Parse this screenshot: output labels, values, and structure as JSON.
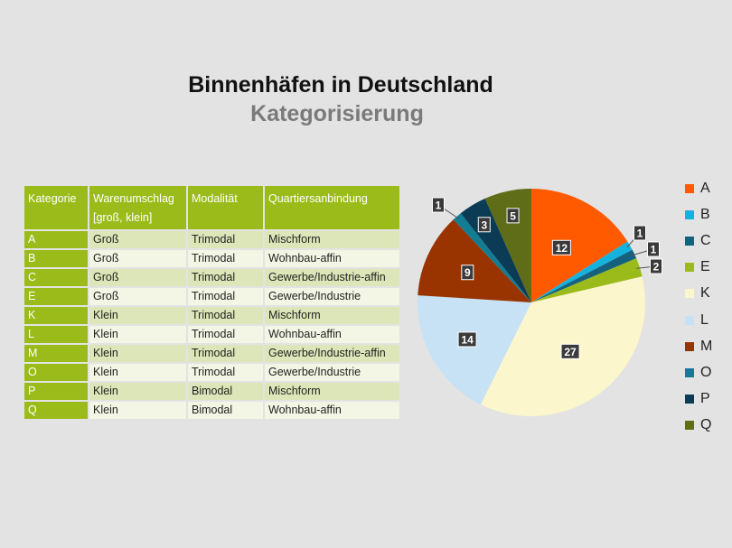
{
  "title": "Binnenhäfen in Deutschland",
  "subtitle": "Kategorisierung",
  "table": {
    "headers": [
      "Kategorie",
      "Warenumschlag\n[groß, klein]",
      "Modalität",
      "Quartiersanbindung"
    ],
    "rows": [
      [
        "A",
        "Groß",
        "Trimodal",
        "Mischform"
      ],
      [
        "B",
        "Groß",
        "Trimodal",
        "Wohnbau-affin"
      ],
      [
        "C",
        "Groß",
        "Trimodal",
        "Gewerbe/Industrie-affin"
      ],
      [
        "E",
        "Groß",
        "Trimodal",
        "Gewerbe/Industrie"
      ],
      [
        "K",
        "Klein",
        "Trimodal",
        "Mischform"
      ],
      [
        "L",
        "Klein",
        "Trimodal",
        "Wohnbau-affin"
      ],
      [
        "M",
        "Klein",
        "Trimodal",
        "Gewerbe/Industrie-affin"
      ],
      [
        "O",
        "Klein",
        "Trimodal",
        "Gewerbe/Industrie"
      ],
      [
        "P",
        "Klein",
        "Bimodal",
        "Mischform"
      ],
      [
        "Q",
        "Klein",
        "Bimodal",
        "Wohnbau-affin"
      ]
    ]
  },
  "chart_data": {
    "type": "pie",
    "categories": [
      "A",
      "B",
      "C",
      "E",
      "K",
      "L",
      "M",
      "O",
      "P",
      "Q"
    ],
    "values": [
      12,
      1,
      1,
      2,
      27,
      14,
      9,
      1,
      3,
      5
    ],
    "colors": [
      "#ff5a00",
      "#16b2de",
      "#14627e",
      "#9bbb1a",
      "#fbf6cc",
      "#c6e2f4",
      "#993300",
      "#127c93",
      "#0b3b55",
      "#5f6d18"
    ],
    "start": "12 o'clock, clockwise",
    "legend_position": "right"
  }
}
